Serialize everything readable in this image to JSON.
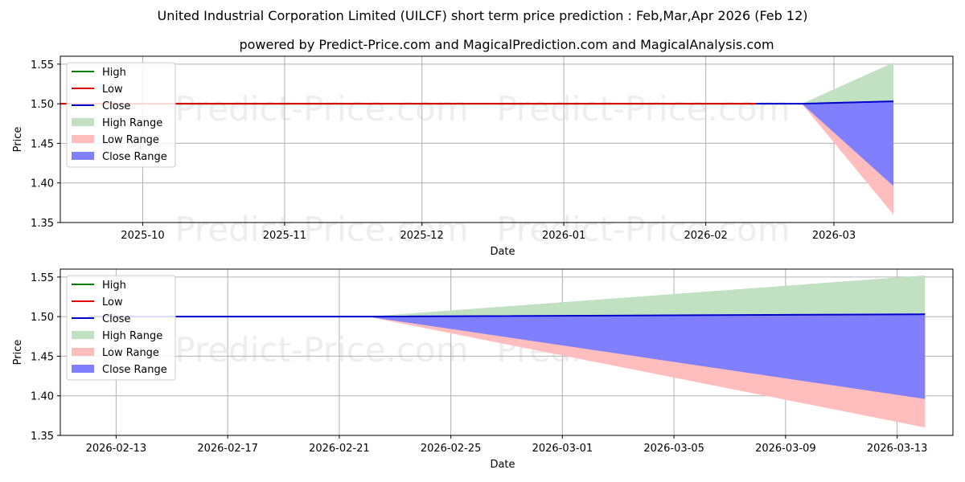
{
  "title": "United Industrial Corporation Limited (UILCF) short term price prediction : Feb,Mar,Apr 2026 (Feb 12)",
  "subtitle": "powered by Predict-Price.com and MagicalPrediction.com and MagicalAnalysis.com",
  "watermark": "Predict-Price.com",
  "colors": {
    "high": "#008000",
    "low": "#e00000",
    "close": "#0000cc",
    "high_range": "#c2e0c2",
    "low_range": "#ffbdbd",
    "close_range": "#8080ff"
  },
  "chart_data": [
    {
      "id": "top",
      "type": "line",
      "title": "",
      "xlabel": "Date",
      "ylabel": "Price",
      "xlim": [
        "2025-09-13",
        "2026-03-27"
      ],
      "ylim": [
        1.35,
        1.56
      ],
      "grid": true,
      "legend_position": "top-left",
      "x_ticks": [
        {
          "date": "2025-10-01",
          "label": "2025-10"
        },
        {
          "date": "2025-11-01",
          "label": "2025-11"
        },
        {
          "date": "2025-12-01",
          "label": "2025-12"
        },
        {
          "date": "2026-01-01",
          "label": "2026-01"
        },
        {
          "date": "2026-02-01",
          "label": "2026-02"
        },
        {
          "date": "2026-03-01",
          "label": "2026-03"
        }
      ],
      "y_ticks": [
        {
          "value": 1.35,
          "label": "1.35"
        },
        {
          "value": 1.4,
          "label": "1.40"
        },
        {
          "value": 1.45,
          "label": "1.45"
        },
        {
          "value": 1.5,
          "label": "1.50"
        },
        {
          "value": 1.55,
          "label": "1.55"
        }
      ],
      "legend": [
        {
          "key": "high",
          "kind": "line",
          "label": "High"
        },
        {
          "key": "low",
          "kind": "line",
          "label": "Low"
        },
        {
          "key": "close",
          "kind": "line",
          "label": "Close"
        },
        {
          "key": "high_range",
          "kind": "patch",
          "label": "High Range"
        },
        {
          "key": "low_range",
          "kind": "patch",
          "label": "Low Range"
        },
        {
          "key": "close_range",
          "kind": "patch",
          "label": "Close Range"
        }
      ],
      "series": [
        {
          "name": "High",
          "key": "high",
          "x": [
            "2025-09-13",
            "2026-02-12"
          ],
          "values": [
            1.5,
            1.5
          ]
        },
        {
          "name": "Low",
          "key": "low",
          "x": [
            "2025-09-13",
            "2026-02-12"
          ],
          "values": [
            1.5,
            1.5
          ]
        },
        {
          "name": "Close",
          "key": "close",
          "x": [
            "2026-02-12",
            "2026-02-22",
            "2026-03-14"
          ],
          "values": [
            1.5,
            1.5,
            1.503
          ]
        }
      ],
      "ranges": [
        {
          "name": "High Range",
          "key": "high_range",
          "x": [
            "2026-02-22",
            "2026-03-14"
          ],
          "lower": [
            1.5,
            1.5
          ],
          "upper": [
            1.5,
            1.552
          ]
        },
        {
          "name": "Low Range",
          "key": "low_range",
          "x": [
            "2026-02-22",
            "2026-03-14"
          ],
          "lower": [
            1.5,
            1.36
          ],
          "upper": [
            1.5,
            1.5
          ]
        },
        {
          "name": "Close Range",
          "key": "close_range",
          "x": [
            "2026-02-22",
            "2026-03-14"
          ],
          "lower": [
            1.5,
            1.396
          ],
          "upper": [
            1.5,
            1.503
          ]
        }
      ]
    },
    {
      "id": "bottom",
      "type": "line",
      "title": "",
      "xlabel": "Date",
      "ylabel": "Price",
      "xlim": [
        "2026-02-11",
        "2026-03-15"
      ],
      "ylim": [
        1.35,
        1.56
      ],
      "grid": true,
      "legend_position": "top-left",
      "x_ticks": [
        {
          "date": "2026-02-13",
          "label": "2026-02-13"
        },
        {
          "date": "2026-02-17",
          "label": "2026-02-17"
        },
        {
          "date": "2026-02-21",
          "label": "2026-02-21"
        },
        {
          "date": "2026-02-25",
          "label": "2026-02-25"
        },
        {
          "date": "2026-03-01",
          "label": "2026-03-01"
        },
        {
          "date": "2026-03-05",
          "label": "2026-03-05"
        },
        {
          "date": "2026-03-09",
          "label": "2026-03-09"
        },
        {
          "date": "2026-03-13",
          "label": "2026-03-13"
        }
      ],
      "y_ticks": [
        {
          "value": 1.35,
          "label": "1.35"
        },
        {
          "value": 1.4,
          "label": "1.40"
        },
        {
          "value": 1.45,
          "label": "1.45"
        },
        {
          "value": 1.5,
          "label": "1.50"
        },
        {
          "value": 1.55,
          "label": "1.55"
        }
      ],
      "legend": [
        {
          "key": "high",
          "kind": "line",
          "label": "High"
        },
        {
          "key": "low",
          "kind": "line",
          "label": "Low"
        },
        {
          "key": "close",
          "kind": "line",
          "label": "Close"
        },
        {
          "key": "high_range",
          "kind": "patch",
          "label": "High Range"
        },
        {
          "key": "low_range",
          "kind": "patch",
          "label": "Low Range"
        },
        {
          "key": "close_range",
          "kind": "patch",
          "label": "Close Range"
        }
      ],
      "series": [
        {
          "name": "Close",
          "key": "close",
          "x": [
            "2026-02-12",
            "2026-02-22",
            "2026-03-14"
          ],
          "values": [
            1.5,
            1.5,
            1.503
          ]
        }
      ],
      "ranges": [
        {
          "name": "High Range",
          "key": "high_range",
          "x": [
            "2026-02-22",
            "2026-03-14"
          ],
          "lower": [
            1.5,
            1.5
          ],
          "upper": [
            1.5,
            1.552
          ]
        },
        {
          "name": "Low Range",
          "key": "low_range",
          "x": [
            "2026-02-22",
            "2026-03-14"
          ],
          "lower": [
            1.5,
            1.36
          ],
          "upper": [
            1.5,
            1.5
          ]
        },
        {
          "name": "Close Range",
          "key": "close_range",
          "x": [
            "2026-02-22",
            "2026-03-14"
          ],
          "lower": [
            1.5,
            1.396
          ],
          "upper": [
            1.5,
            1.503
          ]
        }
      ]
    }
  ]
}
